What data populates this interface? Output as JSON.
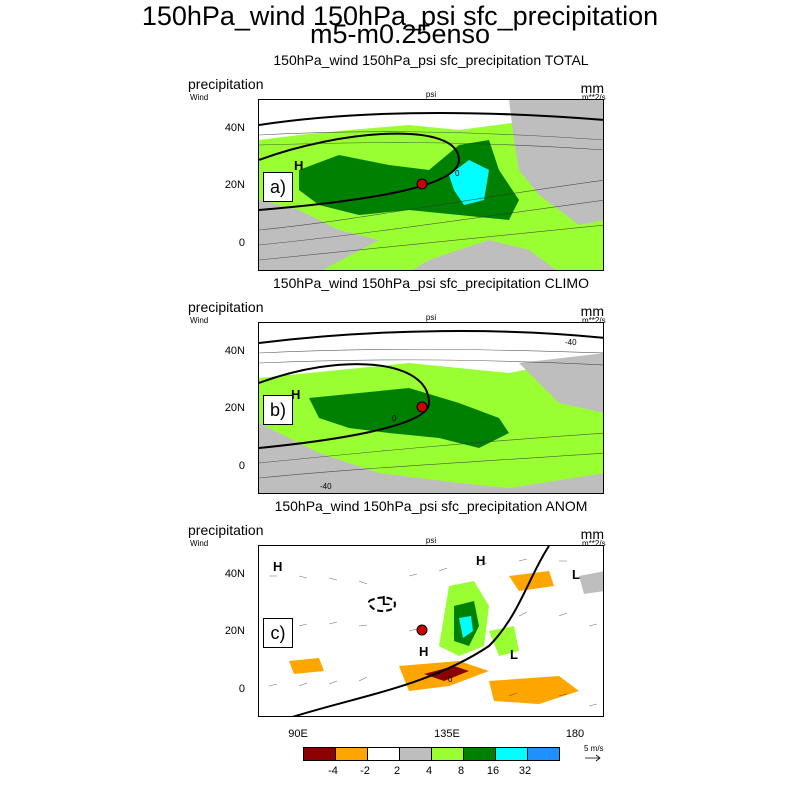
{
  "title_line1": "150hPa_wind 150hPa_psi sfc_precipitation",
  "title_line2": "m5-m0.25enso",
  "side_labels": {
    "left": "precipitation",
    "left_small": "Wind",
    "right": "mm",
    "right_small": "m**2/s",
    "center_small": "psi"
  },
  "panels": [
    {
      "title": "150hPa_wind 150hPa_psi sfc_precipitation TOTAL",
      "letter": "a)"
    },
    {
      "title": "150hPa_wind 150hPa_psi sfc_precipitation CLIMO",
      "letter": "b)"
    },
    {
      "title": "150hPa_wind 150hPa_psi sfc_precipitation ANOM",
      "letter": "c)"
    }
  ],
  "y_ticks": [
    "40N",
    "20N",
    "0"
  ],
  "x_ticks": [
    "90E",
    "135E",
    "180"
  ],
  "contour_labels": {
    "a": [
      "0"
    ],
    "b": [
      "0",
      "-40",
      "-40"
    ],
    "c": [
      "0"
    ]
  },
  "pressure_labels": {
    "a": [
      "H"
    ],
    "b": [
      "H"
    ],
    "c": [
      "H",
      "H",
      "L",
      "L",
      "H",
      "L"
    ]
  },
  "colorbar": {
    "colors": [
      "#8b0000",
      "#ffa500",
      "#ffffff",
      "#bebebe",
      "#99ff33",
      "#008000",
      "#00ffff",
      "#1e90ff"
    ],
    "labels": [
      "-4",
      "-2",
      "2",
      "4",
      "8",
      "16",
      "32"
    ]
  },
  "reference_vector": "5 m/s",
  "chart_data": {
    "type": "heatmap",
    "variables": [
      "150hPa wind",
      "150hPa psi",
      "sfc precipitation"
    ],
    "experiment": "m5-m0.25enso",
    "x_ticks": [
      "90E",
      "135E",
      "180"
    ],
    "y_ticks": [
      "40N",
      "20N",
      "0"
    ],
    "colorbar_levels": [
      -4,
      -2,
      2,
      4,
      8,
      16,
      32
    ],
    "colorbar_colors": [
      "#8b0000",
      "#ffa500",
      "#ffffff",
      "#bebebe",
      "#99ff33",
      "#008000",
      "#00ffff",
      "#1e90ff"
    ],
    "reference_vector_ms": 5,
    "panels": [
      "TOTAL",
      "CLIMO",
      "ANOM"
    ]
  }
}
